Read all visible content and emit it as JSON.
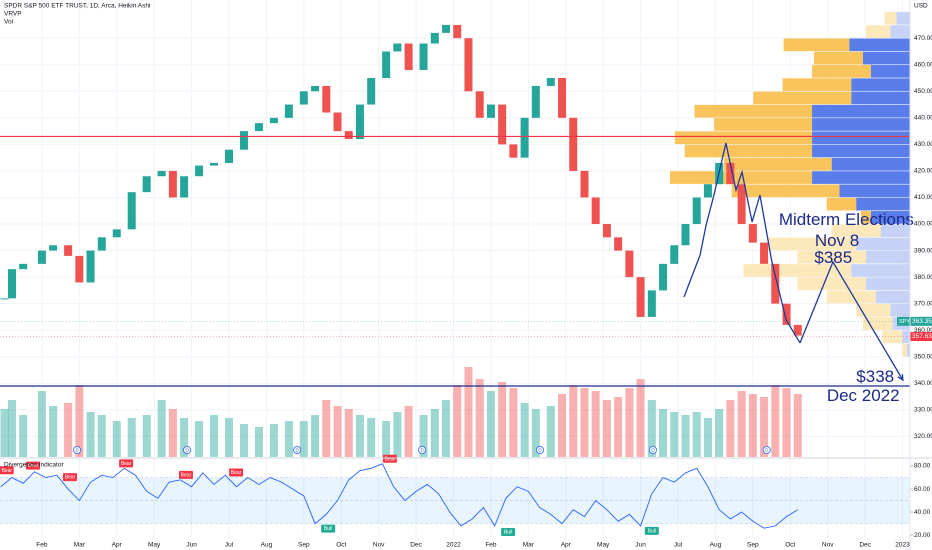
{
  "header": {
    "title": "SPDR S&P 500 ETF TRUST, 1D, Arca, Heikin Ashi",
    "studies": [
      "VRVP",
      "Vol"
    ]
  },
  "chart_data": [
    {
      "type": "price",
      "currency": "USD",
      "xlim": [
        -1.12,
        23.2
      ],
      "xticks": [
        {
          "value": 0,
          "label": "Feb"
        },
        {
          "value": 1,
          "label": "Mar"
        },
        {
          "value": 2,
          "label": "Apr"
        },
        {
          "value": 3,
          "label": "May"
        },
        {
          "value": 4,
          "label": "Jun"
        },
        {
          "value": 5,
          "label": "Jul"
        },
        {
          "value": 6,
          "label": "Aug"
        },
        {
          "value": 7,
          "label": "Sep"
        },
        {
          "value": 8,
          "label": "Oct"
        },
        {
          "value": 9,
          "label": "Nov"
        },
        {
          "value": 10,
          "label": "Dec"
        },
        {
          "value": 11,
          "label": "2022"
        },
        {
          "value": 12,
          "label": "Feb"
        },
        {
          "value": 13,
          "label": "Mar"
        },
        {
          "value": 14,
          "label": "Apr"
        },
        {
          "value": 15,
          "label": "May"
        },
        {
          "value": 16,
          "label": "Jun"
        },
        {
          "value": 17,
          "label": "Jul"
        },
        {
          "value": 18,
          "label": "Aug"
        },
        {
          "value": 19,
          "label": "Sep"
        },
        {
          "value": 20,
          "label": "Oct"
        },
        {
          "value": 21,
          "label": "Nov"
        },
        {
          "value": 22,
          "label": "Dec"
        },
        {
          "value": 23,
          "label": "2023"
        }
      ],
      "ylim": [
        313,
        482.5
      ],
      "yticks": [
        {
          "value": 320,
          "label": "320.00"
        },
        {
          "value": 330,
          "label": "330.00"
        },
        {
          "value": 340,
          "label": "340.00"
        },
        {
          "value": 350,
          "label": "350.00"
        },
        {
          "value": 360,
          "label": "360.00"
        },
        {
          "value": 370,
          "label": "370.00"
        },
        {
          "value": 380,
          "label": "380.00"
        },
        {
          "value": 390,
          "label": "390.00"
        },
        {
          "value": 400,
          "label": "400.00"
        },
        {
          "value": 410,
          "label": "410.00"
        },
        {
          "value": 420,
          "label": "420.00"
        },
        {
          "value": 430,
          "label": "430.00"
        },
        {
          "value": 440,
          "label": "440.00"
        },
        {
          "value": 450,
          "label": "450.00"
        },
        {
          "value": 460,
          "label": "460.00"
        },
        {
          "value": 470,
          "label": "470.00"
        }
      ],
      "grid": true,
      "up_color": "#26a69a",
      "down_color": "#ef5350",
      "x": [
        -1.0,
        -0.8,
        -0.5,
        0,
        0.3,
        0.7,
        1.0,
        1.3,
        1.6,
        2.0,
        2.4,
        2.8,
        3.2,
        3.5,
        3.8,
        4.2,
        4.6,
        5.0,
        5.4,
        5.8,
        6.2,
        6.6,
        7.0,
        7.3,
        7.6,
        7.9,
        8.2,
        8.5,
        8.8,
        9.2,
        9.5,
        9.8,
        10.2,
        10.5,
        10.8,
        11.1,
        11.4,
        11.7,
        12.0,
        12.3,
        12.6,
        12.9,
        13.2,
        13.6,
        13.9,
        14.2,
        14.5,
        14.8,
        15.1,
        15.4,
        15.7,
        16.0,
        16.3,
        16.6,
        16.9,
        17.2,
        17.5,
        17.8,
        18.1,
        18.4,
        18.7,
        19.0,
        19.3,
        19.6,
        19.9,
        20.2
      ],
      "values": [
        372,
        383,
        385,
        390,
        392,
        388,
        378,
        390,
        395,
        398,
        412,
        418,
        420,
        410,
        418,
        422,
        423,
        428,
        435,
        438,
        440,
        445,
        450,
        452,
        442,
        435,
        432,
        445,
        455,
        465,
        468,
        458,
        468,
        472,
        475,
        470,
        450,
        440,
        445,
        430,
        425,
        440,
        452,
        455,
        440,
        420,
        410,
        400,
        395,
        390,
        380,
        365,
        375,
        385,
        392,
        400,
        410,
        415,
        423,
        415,
        400,
        393,
        385,
        370,
        362,
        358
      ],
      "volume": [
        80,
        95,
        70,
        110,
        85,
        90,
        120,
        75,
        70,
        60,
        65,
        70,
        95,
        80,
        65,
        60,
        70,
        65,
        55,
        50,
        55,
        60,
        60,
        70,
        95,
        85,
        80,
        70,
        65,
        60,
        75,
        85,
        70,
        80,
        95,
        120,
        150,
        130,
        110,
        125,
        115,
        90,
        80,
        85,
        105,
        120,
        115,
        110,
        95,
        100,
        115,
        130,
        95,
        80,
        75,
        70,
        75,
        65,
        80,
        95,
        110,
        105,
        100,
        120,
        115,
        105
      ],
      "hlines": [
        {
          "value": 433,
          "color": "#f23645"
        },
        {
          "value": 339,
          "color": "#1a2f8f"
        }
      ],
      "price_labels": [
        {
          "value": 363.35,
          "tag": "SPY",
          "color": "#26a69a"
        },
        {
          "value": 357.63,
          "color": "#f23645"
        }
      ],
      "dividends": {
        "label": "D",
        "x": [
          0.94,
          3.88,
          6.82,
          10.16,
          13.31,
          16.33,
          19.37
        ]
      },
      "profile": {
        "type": "volume-profile",
        "prices": [
          477.5,
          472.5,
          467.5,
          462.5,
          457.5,
          452.5,
          447.5,
          442.5,
          437.5,
          432.5,
          427.5,
          422.5,
          417.5,
          412.5,
          407.5,
          402.5,
          397.5,
          392.5,
          387.5,
          382.5,
          377.5,
          372.5,
          367.5,
          362.5,
          357.5,
          352.5
        ],
        "value_area": [
          400,
          470
        ],
        "series": [
          {
            "color": "#f9c45c",
            "light_color": "#fde8bb",
            "values": [
              12,
              25,
              67,
              50,
              60,
              70,
              100,
              120,
              100,
              140,
              130,
              110,
              145,
              110,
              30,
              10,
              50,
              90,
              70,
              110,
              70,
              50,
              35,
              30,
              20,
              5
            ]
          },
          {
            "color": "#5a7ee9",
            "light_color": "#c6d3f7",
            "values": [
              14,
              20,
              62,
              48,
              40,
              60,
              60,
              100,
              100,
              100,
              100,
              80,
              100,
              72,
              55,
              40,
              30,
              55,
              45,
              60,
              45,
              35,
              20,
              18,
              8,
              3
            ]
          }
        ]
      },
      "drawings": [
        {
          "color": "#1e3a9e",
          "points": [
            [
              17.16,
              372.5
            ],
            [
              17.59,
              388.3
            ],
            [
              17.75,
              399.6
            ],
            [
              17.96,
              410.9
            ],
            [
              18.28,
              430.5
            ],
            [
              18.55,
              412.8
            ],
            [
              18.71,
              419.6
            ],
            [
              18.98,
              400.8
            ],
            [
              19.19,
              410.9
            ],
            [
              19.51,
              385.7
            ],
            [
              19.89,
              363.9
            ],
            [
              20.26,
              355.2
            ]
          ]
        },
        {
          "color": "#1e3a9e",
          "arrow": true,
          "points": [
            [
              20.26,
              355.2
            ],
            [
              21.14,
              385.7
            ],
            [
              23.01,
              341.2
            ]
          ]
        }
      ],
      "annotations": [
        {
          "text": "Midterm Elections",
          "x": 21.5,
          "y": 401.4
        },
        {
          "text": "Nov 8",
          "x": 21.25,
          "y": 393.5
        },
        {
          "text": "$385",
          "x": 21.15,
          "y": 387
        },
        {
          "text": "$338",
          "x": 22.27,
          "y": 342.2
        },
        {
          "text": "Dec 2022",
          "x": 21.95,
          "y": 335
        }
      ]
    },
    {
      "type": "line",
      "title": "Divergence Indicator",
      "color": "#2962ff",
      "ylim": [
        14,
        83.5
      ],
      "yticks": [
        {
          "value": 20,
          "label": "20.00"
        },
        {
          "value": 40,
          "label": "40.00"
        },
        {
          "value": 60,
          "label": "60.00"
        },
        {
          "value": 80,
          "label": "80.00"
        }
      ],
      "band": [
        30,
        70
      ],
      "midline": 50,
      "x": [
        -1.1,
        -0.8,
        -0.5,
        -0.2,
        0.1,
        0.4,
        0.7,
        1.0,
        1.3,
        1.6,
        1.9,
        2.2,
        2.5,
        2.8,
        3.1,
        3.4,
        3.7,
        4.0,
        4.3,
        4.6,
        4.9,
        5.2,
        5.5,
        5.8,
        6.1,
        6.4,
        6.7,
        7.0,
        7.3,
        7.6,
        7.9,
        8.2,
        8.5,
        8.8,
        9.1,
        9.4,
        9.7,
        10.0,
        10.3,
        10.6,
        10.9,
        11.2,
        11.5,
        11.8,
        12.1,
        12.4,
        12.7,
        13.0,
        13.3,
        13.6,
        13.9,
        14.2,
        14.5,
        14.8,
        15.1,
        15.4,
        15.7,
        16.0,
        16.3,
        16.6,
        16.9,
        17.2,
        17.5,
        17.8,
        18.1,
        18.4,
        18.7,
        19.0,
        19.3,
        19.6,
        19.9,
        20.2
      ],
      "values": [
        62,
        70,
        65,
        75,
        70,
        72,
        60,
        50,
        66,
        72,
        70,
        78,
        72,
        58,
        52,
        66,
        68,
        62,
        74,
        64,
        72,
        62,
        70,
        64,
        70,
        66,
        60,
        54,
        30,
        38,
        50,
        68,
        76,
        78,
        82,
        62,
        50,
        58,
        64,
        56,
        40,
        28,
        34,
        44,
        28,
        52,
        62,
        58,
        44,
        38,
        30,
        42,
        36,
        50,
        42,
        32,
        38,
        28,
        56,
        70,
        66,
        74,
        78,
        62,
        42,
        34,
        40,
        32,
        26,
        28,
        36,
        42
      ],
      "signals": [
        {
          "label": "Bear",
          "x": -0.94,
          "y": 72,
          "color": "#f23645"
        },
        {
          "label": "Bear",
          "x": -0.24,
          "y": 76,
          "color": "#f23645"
        },
        {
          "label": "Bear",
          "x": 0.75,
          "y": 66,
          "color": "#f23645"
        },
        {
          "label": "Bear",
          "x": 2.25,
          "y": 78,
          "color": "#f23645"
        },
        {
          "label": "Bear",
          "x": 3.85,
          "y": 68,
          "color": "#f23645"
        },
        {
          "label": "Bear",
          "x": 5.19,
          "y": 70,
          "color": "#f23645"
        },
        {
          "label": "Bear",
          "x": 9.3,
          "y": 82,
          "color": "#f23645"
        },
        {
          "label": "Bull",
          "x": 7.65,
          "y": 30,
          "color": "#22ab94"
        },
        {
          "label": "Bull",
          "x": 12.46,
          "y": 27,
          "color": "#22ab94"
        },
        {
          "label": "Bull",
          "x": 16.3,
          "y": 28,
          "color": "#22ab94"
        }
      ]
    }
  ]
}
